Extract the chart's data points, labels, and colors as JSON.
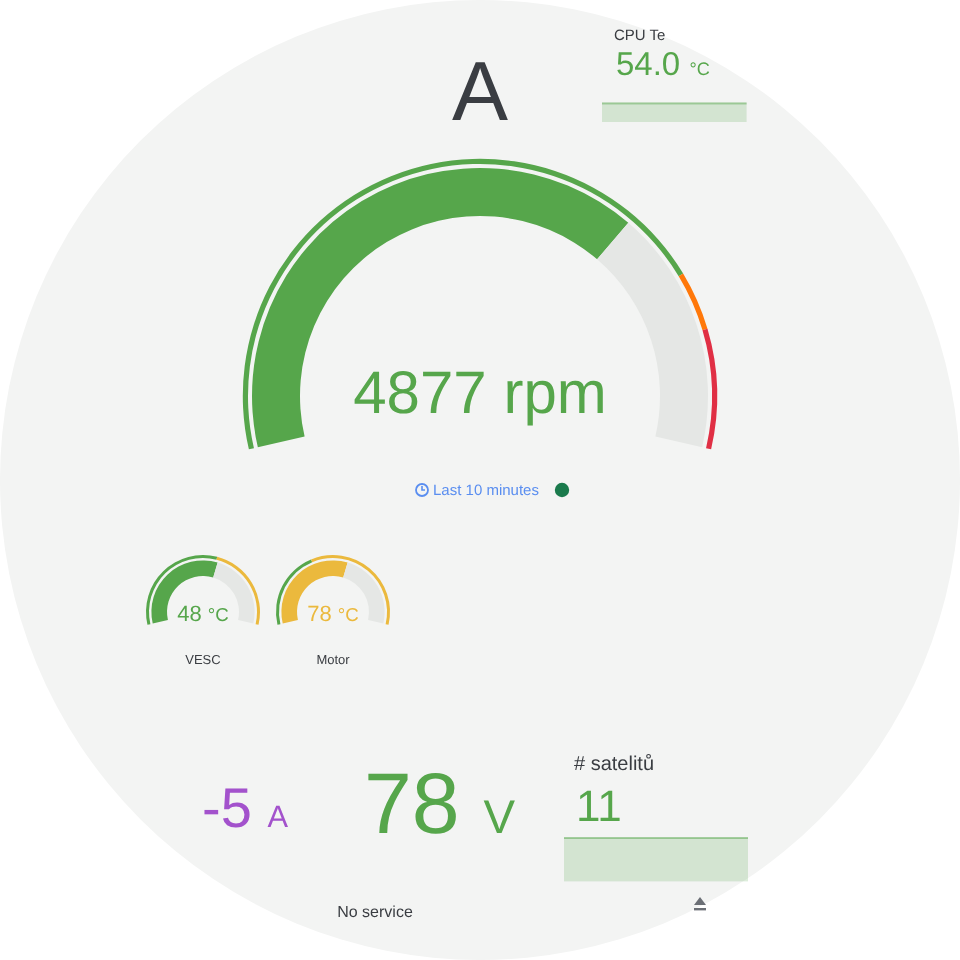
{
  "chart_data": [
    {
      "type": "other",
      "title": "CPU Te",
      "color": "#56a64b",
      "annotations": [
        "54.0 °C"
      ]
    },
    {
      "type": "donut",
      "categories": [
        null,
        null,
        null
      ],
      "values": [
        78.6,
        7.1,
        14.3
      ],
      "colors": [
        "#56a64b",
        "#ff780a",
        "#e02f44"
      ]
    },
    {
      "type": "donut",
      "title": "A",
      "categories": [
        null,
        null
      ],
      "values": [
        69.7,
        30.3
      ],
      "colors": [
        "#56a64b",
        "#e5e7e5"
      ],
      "annotations": [
        "4877 rpm",
        "Last 10 minutes"
      ]
    },
    {
      "type": "donut",
      "categories": [
        null,
        null
      ],
      "values": [
        57,
        43
      ],
      "colors": [
        "#56a64b",
        "#ebb93d"
      ]
    },
    {
      "type": "donut",
      "title": "VESC",
      "categories": [
        null,
        null
      ],
      "values": [
        58,
        42
      ],
      "colors": [
        "#56a64b",
        "#e5e7e5"
      ],
      "annotations": [
        "48 °C"
      ]
    },
    {
      "type": "donut",
      "categories": [
        null,
        null
      ],
      "values": [
        39,
        61
      ],
      "colors": [
        "#56a64b",
        "#ebb93d"
      ]
    },
    {
      "type": "donut",
      "title": "Motor",
      "categories": [
        null,
        null
      ],
      "values": [
        58,
        42
      ],
      "colors": [
        "#ebb93d",
        "#e5e7e5"
      ],
      "annotations": [
        "78 °C"
      ]
    },
    {
      "type": "other",
      "color": "#a352cc",
      "annotations": [
        "-5 A"
      ]
    },
    {
      "type": "other",
      "color": "#56a64b",
      "annotations": [
        "78 V"
      ]
    },
    {
      "type": "other",
      "title": "# satelitů",
      "color": "#56a64b",
      "annotations": [
        "11"
      ]
    },
    {
      "type": "other",
      "annotations": [
        "No service"
      ]
    }
  ]
}
